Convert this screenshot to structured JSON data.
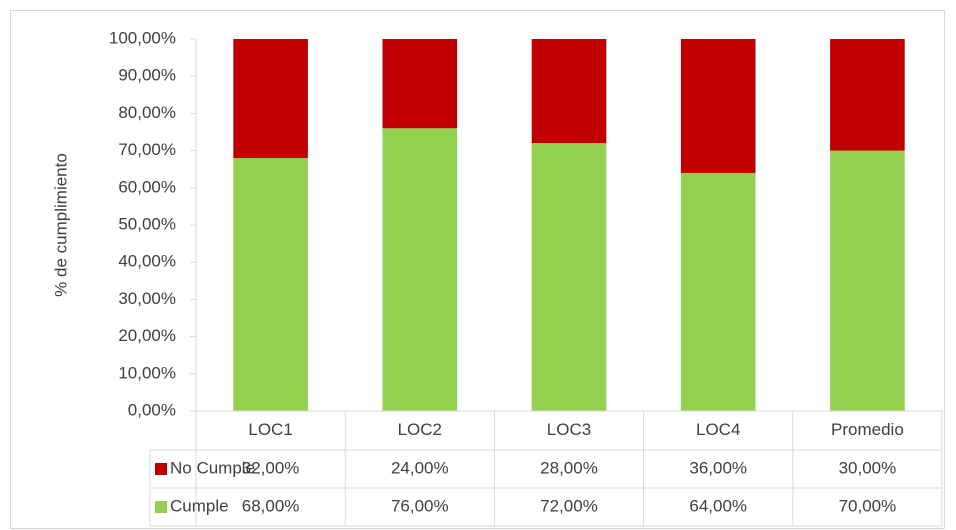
{
  "chart_data": {
    "type": "bar",
    "stacked": true,
    "y_label": "% de cumplimiento",
    "categories": [
      "LOC1",
      "LOC2",
      "LOC3",
      "LOC4",
      "Promedio"
    ],
    "series": [
      {
        "name": "Cumple",
        "color": "#92d050",
        "values": [
          68,
          76,
          72,
          64,
          70
        ],
        "value_labels": [
          "68,00%",
          "76,00%",
          "72,00%",
          "64,00%",
          "70,00%"
        ]
      },
      {
        "name": "No Cumple",
        "color": "#c00000",
        "values": [
          32,
          24,
          28,
          36,
          30
        ],
        "value_labels": [
          "32,00%",
          "24,00%",
          "28,00%",
          "36,00%",
          "30,00%"
        ]
      }
    ],
    "ylim": [
      0,
      100
    ],
    "yticks": [
      {
        "value": 0,
        "label": "0,00%"
      },
      {
        "value": 10,
        "label": "10,00%"
      },
      {
        "value": 20,
        "label": "20,00%"
      },
      {
        "value": 30,
        "label": "30,00%"
      },
      {
        "value": 40,
        "label": "40,00%"
      },
      {
        "value": 50,
        "label": "50,00%"
      },
      {
        "value": 60,
        "label": "60,00%"
      },
      {
        "value": 70,
        "label": "70,00%"
      },
      {
        "value": 80,
        "label": "80,00%"
      },
      {
        "value": 90,
        "label": "90,00%"
      },
      {
        "value": 100,
        "label": "100,00%"
      }
    ],
    "grid": false,
    "data_table": true
  }
}
